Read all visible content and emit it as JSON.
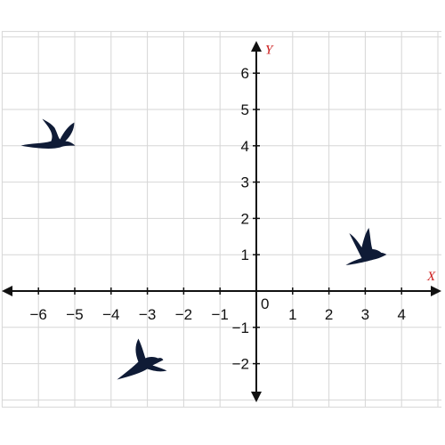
{
  "chart_data": {
    "type": "scatter",
    "xlabel": "X",
    "ylabel": "Y",
    "xlim": [
      -7,
      5
    ],
    "ylim": [
      -3,
      7
    ],
    "grid": true,
    "origin_label": "0",
    "x_ticks": [
      {
        "value": -6,
        "label": "−6"
      },
      {
        "value": -5,
        "label": "−5"
      },
      {
        "value": -4,
        "label": "−4"
      },
      {
        "value": -3,
        "label": "−3"
      },
      {
        "value": -2,
        "label": "−2"
      },
      {
        "value": -1,
        "label": "−1"
      },
      {
        "value": 1,
        "label": "1"
      },
      {
        "value": 2,
        "label": "2"
      },
      {
        "value": 3,
        "label": "3"
      },
      {
        "value": 4,
        "label": "4"
      }
    ],
    "y_ticks": [
      {
        "value": 6,
        "label": "6"
      },
      {
        "value": 5,
        "label": "5"
      },
      {
        "value": 4,
        "label": "4"
      },
      {
        "value": 3,
        "label": "3"
      },
      {
        "value": 2,
        "label": "2"
      },
      {
        "value": 1,
        "label": "1"
      },
      {
        "value": -1,
        "label": "−1"
      },
      {
        "value": -2,
        "label": "−2"
      }
    ],
    "points": [
      {
        "icon": "bird-icon",
        "x": -5.7,
        "y": 4.2,
        "pose": "gliding-wings-up"
      },
      {
        "icon": "bird-icon",
        "x": -3.2,
        "y": -1.9,
        "pose": "swooping-wings-up"
      },
      {
        "icon": "bird-icon",
        "x": 3.0,
        "y": 1.2,
        "pose": "landing-wings-raised"
      }
    ],
    "colors": {
      "grid": "#d6d6d6",
      "axis": "#111111",
      "bird": "#0f1b36",
      "axis_name": "#cc1a1a"
    }
  }
}
